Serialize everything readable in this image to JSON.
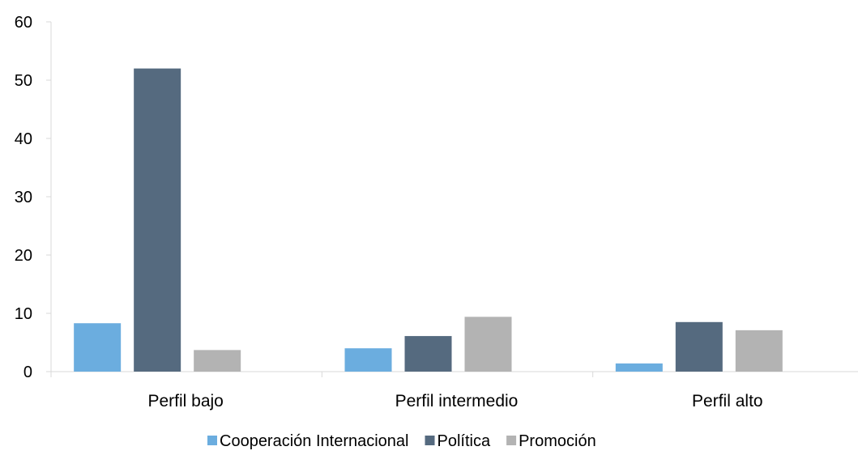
{
  "chart_data": {
    "type": "bar",
    "title": "",
    "xlabel": "",
    "ylabel": "",
    "categories": [
      "Perfil bajo",
      "Perfil intermedio",
      "Perfil alto"
    ],
    "series": [
      {
        "name": "Cooperación Internacional",
        "values": [
          8.3,
          4.0,
          1.4
        ],
        "color": "#6baddf"
      },
      {
        "name": "Política",
        "values": [
          52.0,
          6.1,
          8.5
        ],
        "color": "#556a7f"
      },
      {
        "name": "Promoción",
        "values": [
          3.7,
          9.4,
          7.1
        ],
        "color": "#b3b3b3"
      }
    ],
    "ylim": [
      0,
      60
    ],
    "yticks": [
      0,
      10,
      20,
      30,
      40,
      50,
      60
    ],
    "grid": false,
    "legend_position": "bottom",
    "axis_color": "#d9d9d9"
  }
}
